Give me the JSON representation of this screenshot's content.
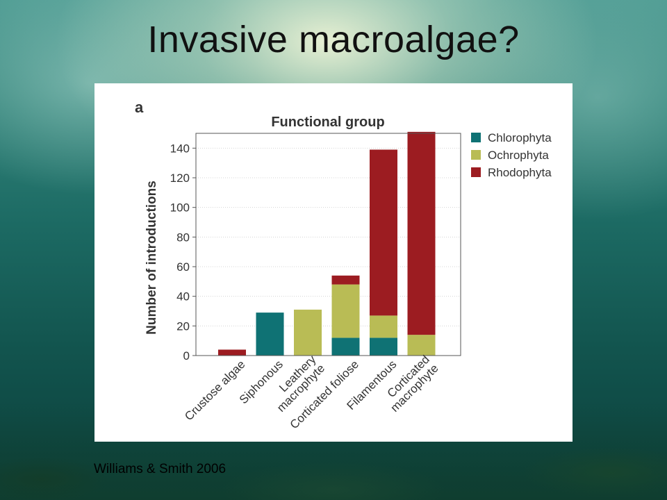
{
  "slide": {
    "title": "Invasive macroalgae?",
    "citation": "Williams & Smith 2006"
  },
  "chart_data": {
    "type": "bar",
    "stacked": true,
    "panel_label": "a",
    "title": "Functional group",
    "xlabel": "",
    "ylabel": "Number of introductions",
    "ylim": [
      0,
      150
    ],
    "yticks": [
      0,
      20,
      40,
      60,
      80,
      100,
      120,
      140
    ],
    "grid": true,
    "legend_position": "right",
    "categories": [
      [
        "Crustose algae"
      ],
      [
        "Siphonous"
      ],
      [
        "Leathery",
        "macrophyte"
      ],
      [
        "Corticated foliose"
      ],
      [
        "Filamentous"
      ],
      [
        "Corticated",
        "macrophyte"
      ]
    ],
    "series": [
      {
        "name": "Chlorophyta",
        "color": "#0f7274",
        "values": [
          0,
          29,
          0,
          12,
          12,
          0
        ]
      },
      {
        "name": "Ochrophyta",
        "color": "#b9bc55",
        "values": [
          0,
          0,
          31,
          36,
          15,
          14
        ]
      },
      {
        "name": "Rhodophyta",
        "color": "#9c1c21",
        "values": [
          4,
          0,
          0,
          6,
          112,
          137
        ]
      }
    ]
  }
}
